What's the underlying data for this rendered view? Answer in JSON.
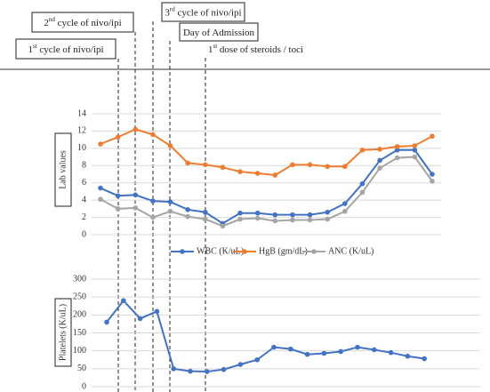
{
  "annotations": [
    {
      "num": "1",
      "sup": "st",
      "text": " cycle of nivo/ipi"
    },
    {
      "num": "2",
      "sup": "nd",
      "text": " cycle of nivo/ipi"
    },
    {
      "num": "3",
      "sup": "rd",
      "text": " cycle of nivo/ipi"
    },
    {
      "text": "Day of Admission"
    },
    {
      "num": "1",
      "sup": "st",
      "text": " dose of steroids / toci"
    }
  ],
  "chart_data": [
    {
      "type": "line",
      "ylabel": "Lab values",
      "ylim": [
        0,
        14
      ],
      "yticks": [
        0,
        2,
        4,
        6,
        8,
        10,
        12,
        14
      ],
      "grid": true,
      "series": [
        {
          "name": "WBC (K/uL)",
          "color": "#4472c4",
          "values": [
            5.4,
            4.5,
            4.6,
            3.9,
            3.8,
            2.9,
            2.6,
            1.3,
            2.5,
            2.5,
            2.3,
            2.3,
            2.3,
            2.6,
            3.6,
            5.9,
            8.6,
            9.8,
            9.8,
            7.0
          ]
        },
        {
          "name": "HgB (gm/dL)",
          "color": "#ed7d31",
          "values": [
            10.5,
            11.3,
            12.2,
            11.6,
            10.3,
            8.3,
            8.1,
            7.8,
            7.3,
            7.1,
            6.9,
            8.1,
            8.1,
            7.9,
            7.9,
            9.8,
            9.9,
            10.2,
            10.3,
            11.4
          ]
        },
        {
          "name": "ANC (K/uL)",
          "color": "#a5a5a5",
          "values": [
            4.1,
            3.0,
            3.1,
            2.0,
            2.7,
            2.1,
            1.8,
            1.0,
            1.8,
            1.9,
            1.6,
            1.7,
            1.7,
            1.8,
            2.7,
            4.9,
            7.7,
            8.9,
            9.0,
            6.2
          ]
        }
      ]
    },
    {
      "type": "line",
      "ylabel": "Platelets (K/uL)",
      "ylim": [
        0,
        300
      ],
      "yticks": [
        0,
        50,
        100,
        150,
        200,
        250,
        300
      ],
      "grid": true,
      "series": [
        {
          "color": "#4472c4",
          "values": [
            180,
            240,
            190,
            210,
            50,
            43,
            42,
            48,
            62,
            75,
            110,
            105,
            90,
            93,
            98,
            110,
            103,
            95,
            85,
            78
          ]
        }
      ]
    }
  ]
}
